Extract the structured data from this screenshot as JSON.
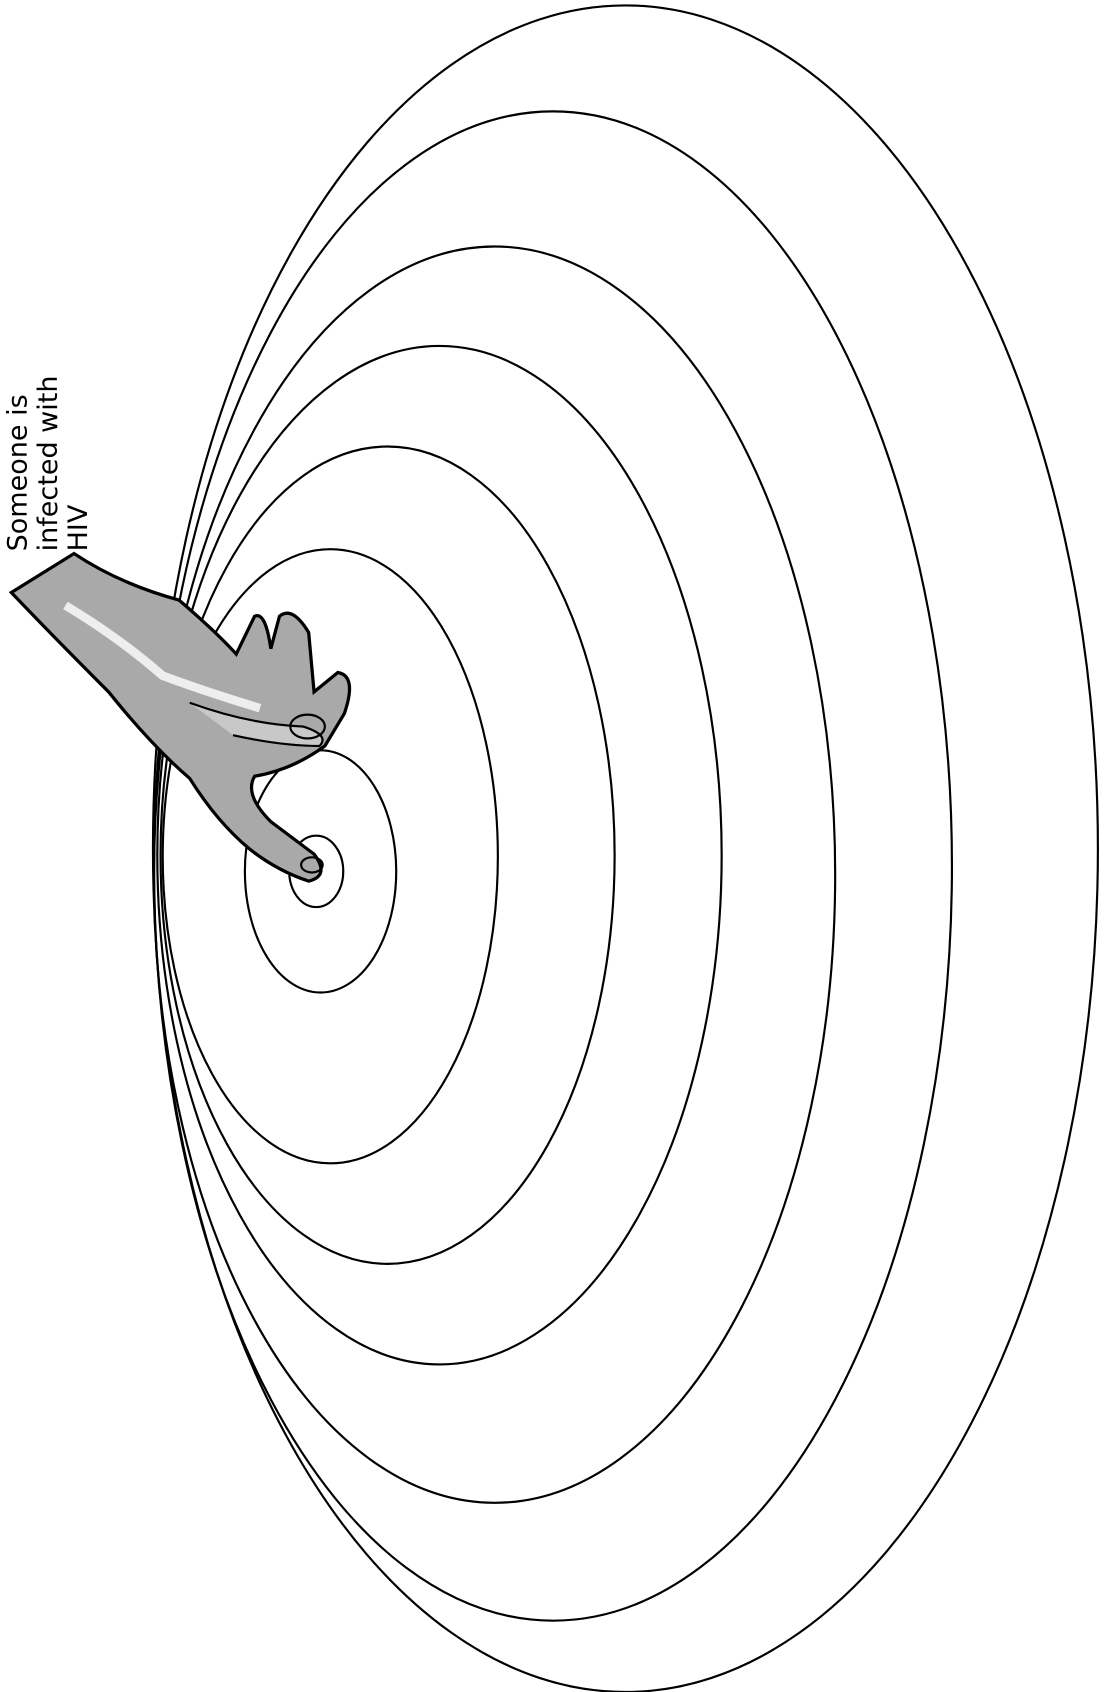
{
  "label": {
    "lines": [
      "Someone is",
      "infected with",
      "HIV"
    ]
  }
}
